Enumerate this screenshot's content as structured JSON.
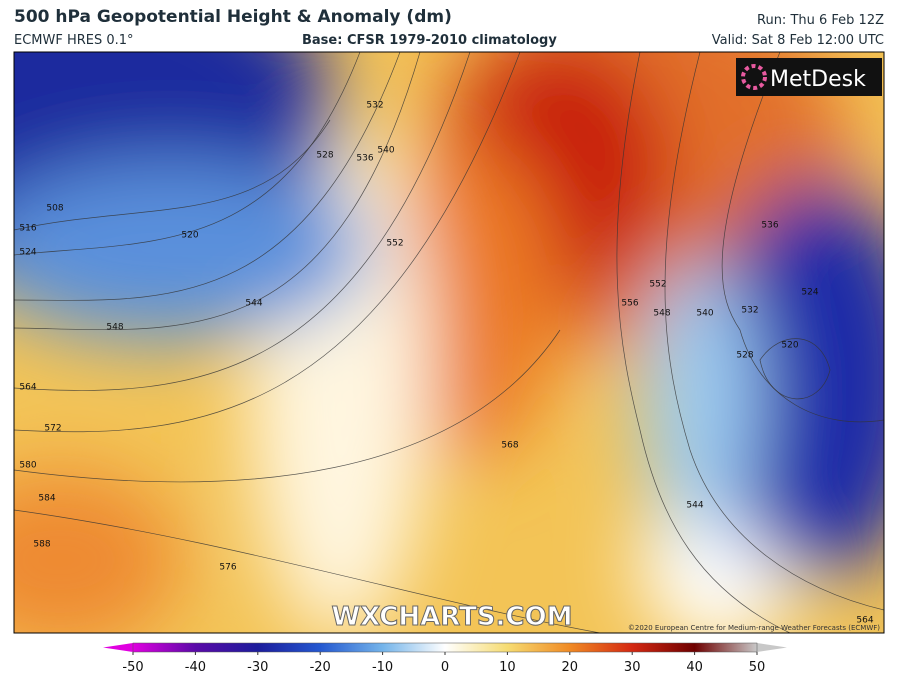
{
  "header": {
    "title": "500 hPa Geopotential Height & Anomaly (dm)",
    "model": "ECMWF HRES 0.1°",
    "base": "Base: CFSR 1979-2010 climatology",
    "run": "Run: Thu 6 Feb 12Z",
    "valid": "Valid: Sat 8 Feb 12:00 UTC"
  },
  "logo": "MetDesk",
  "watermark": "WXCHARTS.COM",
  "copyright": "©2020 European Centre for Medium-range Weather Forecasts (ECMWF)",
  "contour_labels": [
    "532",
    "536",
    "540",
    "528",
    "520",
    "516",
    "524",
    "508",
    "544",
    "548",
    "552",
    "564",
    "572",
    "580",
    "584",
    "588",
    "576",
    "568",
    "556",
    "552",
    "548",
    "540",
    "532",
    "528",
    "520",
    "524",
    "536",
    "544",
    "564"
  ],
  "colorbar": {
    "range": [
      -50,
      50
    ],
    "ticks": [
      -50,
      -40,
      -30,
      -20,
      -10,
      0,
      10,
      20,
      30,
      40,
      50
    ],
    "colors": [
      "#e000e0",
      "#5a0aa8",
      "#1c1c9c",
      "#2458d0",
      "#74b4ea",
      "#ffffff",
      "#f6dc72",
      "#f08a24",
      "#d42812",
      "#6e0000",
      "#c8c8c8"
    ]
  }
}
